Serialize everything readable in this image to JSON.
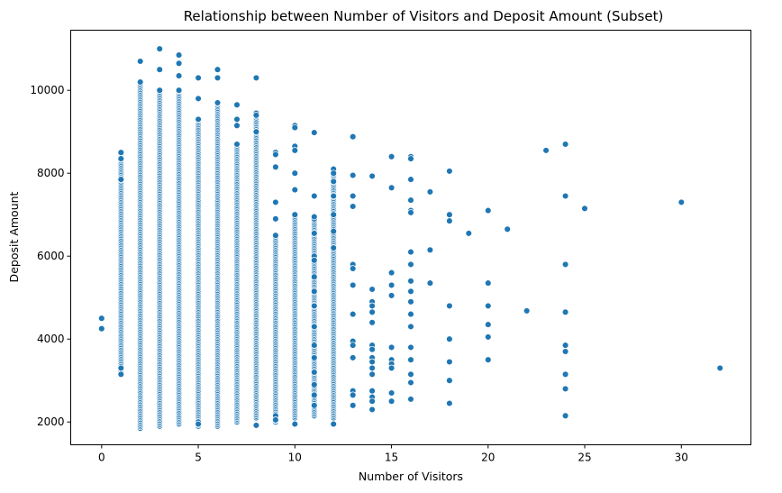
{
  "chart_data": {
    "type": "scatter",
    "title": "Relationship between Number of Visitors and Deposit Amount (Subset)",
    "xlabel": "Number of Visitors",
    "ylabel": "Deposit Amount",
    "xlim": [
      -1.6,
      33.6
    ],
    "ylim": [
      1450,
      11450
    ],
    "xticks": [
      0,
      5,
      10,
      15,
      20,
      25,
      30
    ],
    "yticks": [
      2000,
      4000,
      6000,
      8000,
      10000
    ],
    "grid": false,
    "legend": "none",
    "marker_color": "#1f77b4",
    "dense_columns": [
      {
        "x": 1,
        "y_min": 3150,
        "y_max": 8500
      },
      {
        "x": 2,
        "y_min": 1850,
        "y_max": 10200
      },
      {
        "x": 3,
        "y_min": 1900,
        "y_max": 10000
      },
      {
        "x": 4,
        "y_min": 1950,
        "y_max": 10000
      },
      {
        "x": 5,
        "y_min": 1900,
        "y_max": 9300
      },
      {
        "x": 6,
        "y_min": 1900,
        "y_max": 9700
      },
      {
        "x": 7,
        "y_min": 2000,
        "y_max": 8700
      },
      {
        "x": 8,
        "y_min": 2100,
        "y_max": 9400
      },
      {
        "x": 9,
        "y_min": 2000,
        "y_max": 6500
      },
      {
        "x": 10,
        "y_min": 2100,
        "y_max": 7000
      },
      {
        "x": 11,
        "y_min": 2150,
        "y_max": 6900
      },
      {
        "x": 12,
        "y_min": 2100,
        "y_max": 8100
      }
    ],
    "points": [
      [
        0,
        4500
      ],
      [
        0,
        4250
      ],
      [
        1,
        8500
      ],
      [
        1,
        8350
      ],
      [
        1,
        7850
      ],
      [
        1,
        3300
      ],
      [
        1,
        3150
      ],
      [
        2,
        10700
      ],
      [
        2,
        10200
      ],
      [
        3,
        11000
      ],
      [
        3,
        10500
      ],
      [
        3,
        10000
      ],
      [
        4,
        10850
      ],
      [
        4,
        10650
      ],
      [
        4,
        10350
      ],
      [
        4,
        10000
      ],
      [
        5,
        10300
      ],
      [
        5,
        9800
      ],
      [
        5,
        9300
      ],
      [
        5,
        2000
      ],
      [
        5,
        1950
      ],
      [
        6,
        10500
      ],
      [
        6,
        10300
      ],
      [
        6,
        9700
      ],
      [
        7,
        9650
      ],
      [
        7,
        9300
      ],
      [
        7,
        9150
      ],
      [
        8,
        10300
      ],
      [
        8,
        9450
      ],
      [
        8,
        9400
      ],
      [
        8,
        9000
      ],
      [
        8,
        1920
      ],
      [
        9,
        8500
      ],
      [
        9,
        8450
      ],
      [
        9,
        8150
      ],
      [
        9,
        7300
      ],
      [
        9,
        6900
      ],
      [
        9,
        2150
      ],
      [
        9,
        2050
      ],
      [
        10,
        9150
      ],
      [
        10,
        9100
      ],
      [
        10,
        8650
      ],
      [
        10,
        8550
      ],
      [
        10,
        8000
      ],
      [
        10,
        7600
      ],
      [
        10,
        1950
      ],
      [
        11,
        8980
      ],
      [
        11,
        7450
      ],
      [
        11,
        6950
      ],
      [
        11,
        6550
      ],
      [
        11,
        6000
      ],
      [
        11,
        5900
      ],
      [
        11,
        5500
      ],
      [
        11,
        5150
      ],
      [
        11,
        4800
      ],
      [
        11,
        4300
      ],
      [
        11,
        3850
      ],
      [
        11,
        3550
      ],
      [
        11,
        3200
      ],
      [
        11,
        2900
      ],
      [
        11,
        2650
      ],
      [
        11,
        2400
      ],
      [
        12,
        8100
      ],
      [
        12,
        8000
      ],
      [
        12,
        7800
      ],
      [
        12,
        7450
      ],
      [
        12,
        7000
      ],
      [
        12,
        6600
      ],
      [
        12,
        6200
      ],
      [
        12,
        1950
      ],
      [
        13,
        8880
      ],
      [
        13,
        7950
      ],
      [
        13,
        7450
      ],
      [
        13,
        7200
      ],
      [
        13,
        5800
      ],
      [
        13,
        5700
      ],
      [
        13,
        5300
      ],
      [
        13,
        4600
      ],
      [
        13,
        3950
      ],
      [
        13,
        3850
      ],
      [
        13,
        3550
      ],
      [
        13,
        2750
      ],
      [
        13,
        2650
      ],
      [
        13,
        2400
      ],
      [
        14,
        7930
      ],
      [
        14,
        5200
      ],
      [
        14,
        4900
      ],
      [
        14,
        4800
      ],
      [
        14,
        4650
      ],
      [
        14,
        4400
      ],
      [
        14,
        3850
      ],
      [
        14,
        3750
      ],
      [
        14,
        3550
      ],
      [
        14,
        3450
      ],
      [
        14,
        3300
      ],
      [
        14,
        3150
      ],
      [
        14,
        2750
      ],
      [
        14,
        2600
      ],
      [
        14,
        2500
      ],
      [
        14,
        2300
      ],
      [
        15,
        8400
      ],
      [
        15,
        7650
      ],
      [
        15,
        5600
      ],
      [
        15,
        5300
      ],
      [
        15,
        5050
      ],
      [
        15,
        3800
      ],
      [
        15,
        3500
      ],
      [
        15,
        3400
      ],
      [
        15,
        3300
      ],
      [
        15,
        2700
      ],
      [
        15,
        2500
      ],
      [
        16,
        8400
      ],
      [
        16,
        8350
      ],
      [
        16,
        7850
      ],
      [
        16,
        7350
      ],
      [
        16,
        7100
      ],
      [
        16,
        7050
      ],
      [
        16,
        6100
      ],
      [
        16,
        5800
      ],
      [
        16,
        5400
      ],
      [
        16,
        5150
      ],
      [
        16,
        4900
      ],
      [
        16,
        4600
      ],
      [
        16,
        4300
      ],
      [
        16,
        3800
      ],
      [
        16,
        3500
      ],
      [
        16,
        3150
      ],
      [
        16,
        2950
      ],
      [
        16,
        2550
      ],
      [
        17,
        7550
      ],
      [
        17,
        6150
      ],
      [
        17,
        5350
      ],
      [
        18,
        8050
      ],
      [
        18,
        7000
      ],
      [
        18,
        6850
      ],
      [
        18,
        4800
      ],
      [
        18,
        4000
      ],
      [
        18,
        3450
      ],
      [
        18,
        3000
      ],
      [
        18,
        2450
      ],
      [
        19,
        6550
      ],
      [
        20,
        7100
      ],
      [
        20,
        5350
      ],
      [
        20,
        4800
      ],
      [
        20,
        4350
      ],
      [
        20,
        4050
      ],
      [
        20,
        3500
      ],
      [
        21,
        6650
      ],
      [
        22,
        4680
      ],
      [
        23,
        8550
      ],
      [
        24,
        8700
      ],
      [
        24,
        7450
      ],
      [
        24,
        5800
      ],
      [
        24,
        4650
      ],
      [
        24,
        3850
      ],
      [
        24,
        3700
      ],
      [
        24,
        3150
      ],
      [
        24,
        2800
      ],
      [
        24,
        2150
      ],
      [
        25,
        7150
      ],
      [
        30,
        7300
      ],
      [
        32,
        3300
      ]
    ]
  }
}
